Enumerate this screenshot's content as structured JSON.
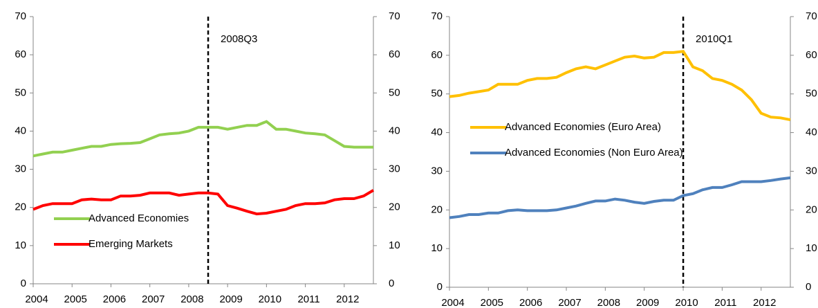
{
  "chart_data": [
    {
      "type": "line",
      "x": [
        2004,
        2004.25,
        2004.5,
        2004.75,
        2005,
        2005.25,
        2005.5,
        2005.75,
        2006,
        2006.25,
        2006.5,
        2006.75,
        2007,
        2007.25,
        2007.5,
        2007.75,
        2008,
        2008.25,
        2008.5,
        2008.75,
        2009,
        2009.25,
        2009.5,
        2009.75,
        2010,
        2010.25,
        2010.5,
        2010.75,
        2011,
        2011.25,
        2011.5,
        2011.75,
        2012,
        2012.25,
        2012.5,
        2012.75
      ],
      "series": [
        {
          "name": "Advanced Economies",
          "color": "#92d050",
          "values": [
            33.5,
            34,
            34.5,
            34.5,
            35,
            35.5,
            36,
            36,
            36.5,
            36.7,
            36.8,
            37,
            38,
            39,
            39.3,
            39.5,
            40,
            41,
            41,
            41,
            40.5,
            41,
            41.5,
            41.5,
            42.5,
            40.5,
            40.5,
            40,
            39.5,
            39.3,
            39,
            37.5,
            36,
            35.8,
            35.8,
            35.8
          ]
        },
        {
          "name": "Emerging Markets",
          "color": "#ff0000",
          "values": [
            19.5,
            20.5,
            21,
            21,
            21,
            22,
            22.2,
            22,
            22,
            23,
            23,
            23.2,
            23.8,
            23.8,
            23.8,
            23.2,
            23.5,
            23.8,
            23.8,
            23.5,
            20.5,
            19.8,
            19,
            18.3,
            18.5,
            19,
            19.5,
            20.5,
            21,
            21,
            21.2,
            22,
            22.3,
            22.3,
            23,
            24.5
          ]
        }
      ],
      "xlim": [
        2004,
        2012.75
      ],
      "xticks": [
        2004,
        2005,
        2006,
        2007,
        2008,
        2009,
        2010,
        2011,
        2012
      ],
      "ylim": [
        0,
        70
      ],
      "yticks": [
        0,
        10,
        20,
        30,
        40,
        50,
        60,
        70
      ],
      "y2lim": [
        0,
        70
      ],
      "y2ticks": [
        0,
        10,
        20,
        30,
        40,
        50,
        60,
        70
      ],
      "vline": {
        "x": 2008.5,
        "label": "2008Q3"
      },
      "legend": "lower left"
    },
    {
      "type": "line",
      "x": [
        2004,
        2004.25,
        2004.5,
        2004.75,
        2005,
        2005.25,
        2005.5,
        2005.75,
        2006,
        2006.25,
        2006.5,
        2006.75,
        2007,
        2007.25,
        2007.5,
        2007.75,
        2008,
        2008.25,
        2008.5,
        2008.75,
        2009,
        2009.25,
        2009.5,
        2009.75,
        2010,
        2010.25,
        2010.5,
        2010.75,
        2011,
        2011.25,
        2011.5,
        2011.75,
        2012,
        2012.25,
        2012.5,
        2012.75
      ],
      "series": [
        {
          "name": "Advanced Economies (Euro Area)",
          "color": "#ffc000",
          "values": [
            49.3,
            49.6,
            50.2,
            50.6,
            51,
            52.5,
            52.5,
            52.5,
            53.5,
            54,
            54,
            54.3,
            55.5,
            56.5,
            57,
            56.5,
            57.5,
            58.5,
            59.5,
            59.8,
            59.3,
            59.5,
            60.7,
            60.7,
            61,
            57,
            56,
            54,
            53.5,
            52.5,
            51,
            48.5,
            45,
            44,
            43.8,
            43.3
          ]
        },
        {
          "name": "Advanced Economies (Non Euro Area)",
          "color": "#4f81bd",
          "values": [
            18,
            18.3,
            18.8,
            18.8,
            19.2,
            19.2,
            19.8,
            20,
            19.8,
            19.8,
            19.8,
            20,
            20.5,
            21,
            21.7,
            22.3,
            22.3,
            22.8,
            22.5,
            22,
            21.7,
            22.2,
            22.5,
            22.5,
            23.7,
            24.2,
            25.2,
            25.8,
            25.8,
            26.5,
            27.3,
            27.3,
            27.3,
            27.6,
            28,
            28.3
          ]
        }
      ],
      "xlim": [
        2004,
        2012.75
      ],
      "xticks": [
        2004,
        2005,
        2006,
        2007,
        2008,
        2009,
        2010,
        2011,
        2012
      ],
      "ylim": [
        0,
        70
      ],
      "yticks": [
        0,
        10,
        20,
        30,
        40,
        50,
        60,
        70
      ],
      "y2lim": [
        0,
        70
      ],
      "y2ticks": [
        0,
        10,
        20,
        30,
        40,
        50,
        60,
        70
      ],
      "vline": {
        "x": 2010,
        "label": "2010Q1"
      },
      "legend": "center left"
    }
  ]
}
